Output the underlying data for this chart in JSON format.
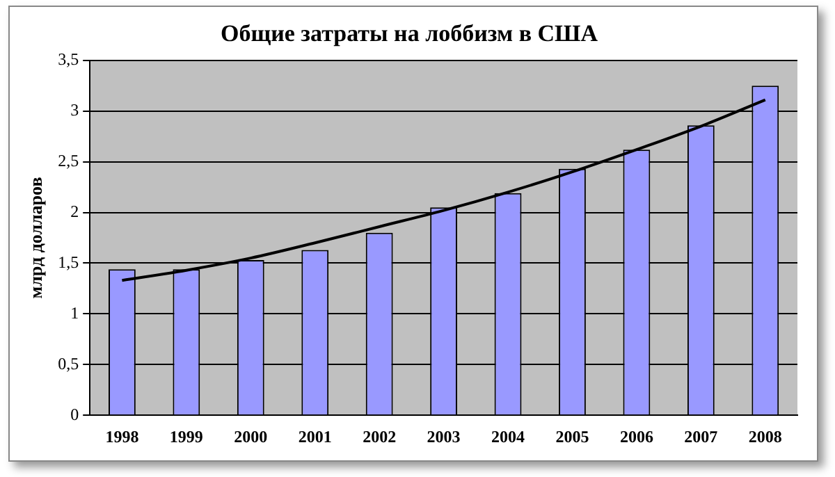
{
  "chart_data": {
    "type": "bar",
    "title": "Общие затраты на лоббизм в США",
    "ylabel": "млрд долларов",
    "categories": [
      "1998",
      "1999",
      "2000",
      "2001",
      "2002",
      "2003",
      "2004",
      "2005",
      "2006",
      "2007",
      "2008"
    ],
    "series": [
      {
        "color": "#9999ff",
        "values": [
          1.44,
          1.44,
          1.53,
          1.63,
          1.8,
          2.05,
          2.19,
          2.43,
          2.62,
          2.86,
          3.25
        ]
      },
      {
        "type": "line",
        "color": "#000000",
        "values": [
          1.33,
          1.43,
          1.55,
          1.7,
          1.86,
          2.02,
          2.2,
          2.4,
          2.62,
          2.85,
          3.11
        ],
        "marker": "none",
        "line_style": "solid"
      }
    ],
    "ylim": [
      0,
      3.5
    ],
    "yticks": [
      {
        "value": 0,
        "label": "0"
      },
      {
        "value": 0.5,
        "label": "0,5"
      },
      {
        "value": 1,
        "label": "1"
      },
      {
        "value": 1.5,
        "label": "1,5"
      },
      {
        "value": 2,
        "label": "2"
      },
      {
        "value": 2.5,
        "label": "2,5"
      },
      {
        "value": 3,
        "label": "3"
      },
      {
        "value": 3.5,
        "label": "3,5"
      }
    ],
    "grid": "y",
    "legend": false
  }
}
